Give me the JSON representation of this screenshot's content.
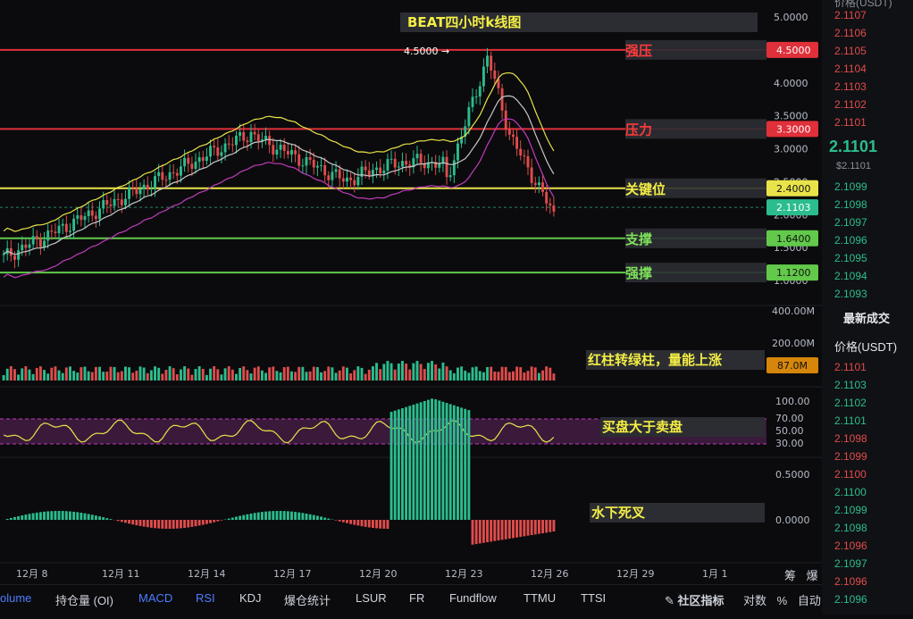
{
  "chart_title": "BEAT四小时k线图",
  "peak_label": "4.5000",
  "price_axis": [
    "5.0000",
    "4.5000",
    "4.0000",
    "3.5000",
    "3.0000",
    "2.5000",
    "2.0000",
    "1.5000",
    "1.0000"
  ],
  "levels": [
    {
      "label": "强压",
      "value": "4.5000",
      "color": "#e0303a",
      "text": "#ff3b3b"
    },
    {
      "label": "压力",
      "value": "3.3000",
      "color": "#e0303a",
      "text": "#ff3b3b"
    },
    {
      "label": "关键位",
      "value": "2.4000",
      "color": "#e9e34a",
      "text": "#f4ee45"
    },
    {
      "label": "支撑",
      "value": "1.6400",
      "color": "#62c94a",
      "text": "#7ee05a"
    },
    {
      "label": "强撑",
      "value": "1.1200",
      "color": "#62c94a",
      "text": "#7ee05a"
    }
  ],
  "current_price": "2.1103",
  "volume_panel": {
    "axis": [
      "400.00M",
      "200.00M"
    ],
    "current": "87.0M",
    "note": "红柱转绿柱，量能上涨"
  },
  "rsi_panel": {
    "axis": [
      "100.00",
      "70.00",
      "50.00",
      "30.00"
    ],
    "note": "买盘大于卖盘"
  },
  "macd_panel": {
    "axis": [
      "0.5000",
      "0.0000"
    ],
    "note": "水下死叉"
  },
  "x_axis": [
    "12月 8",
    "12月 11",
    "12月 14",
    "12月 17",
    "12月 20",
    "12月 23",
    "12月 26",
    "12月 29",
    "1月 1"
  ],
  "orderbook": {
    "header": "价格(USDT)",
    "asks": [
      "2.1107",
      "2.1106",
      "2.1105",
      "2.1104",
      "2.1103",
      "2.1102",
      "2.1101"
    ],
    "last": "2.1101",
    "last_sub": "$2.1101",
    "bids": [
      "2.1099",
      "2.1098",
      "2.1097",
      "2.1096",
      "2.1095",
      "2.1094",
      "2.1093"
    ],
    "trades_title": "最新成交",
    "trades_header": "价格(USDT)",
    "trades": [
      {
        "p": "2.1101",
        "c": "#e04c4c"
      },
      {
        "p": "2.1103",
        "c": "#2bbd8e"
      },
      {
        "p": "2.1102",
        "c": "#2bbd8e"
      },
      {
        "p": "2.1101",
        "c": "#2bbd8e"
      },
      {
        "p": "2.1098",
        "c": "#e04c4c"
      },
      {
        "p": "2.1099",
        "c": "#e04c4c"
      },
      {
        "p": "2.1100",
        "c": "#e04c4c"
      },
      {
        "p": "2.1100",
        "c": "#2bbd8e"
      },
      {
        "p": "2.1099",
        "c": "#2bbd8e"
      },
      {
        "p": "2.1098",
        "c": "#2bbd8e"
      },
      {
        "p": "2.1096",
        "c": "#e04c4c"
      },
      {
        "p": "2.1097",
        "c": "#2bbd8e"
      },
      {
        "p": "2.1096",
        "c": "#e04c4c"
      },
      {
        "p": "2.1096",
        "c": "#2bbd8e"
      }
    ]
  },
  "tabs": [
    "olume",
    "持仓量 (OI)",
    "MACD",
    "RSI",
    "KDJ",
    "爆仓统计",
    "LSUR",
    "FR",
    "Fundflow",
    "TTMU",
    "TTSI"
  ],
  "community": "社区指标",
  "bottom_right": [
    "对数",
    "%",
    "自动"
  ],
  "corner_right": [
    "筹",
    "爆"
  ],
  "header_cut": "价格(USDT)"
}
